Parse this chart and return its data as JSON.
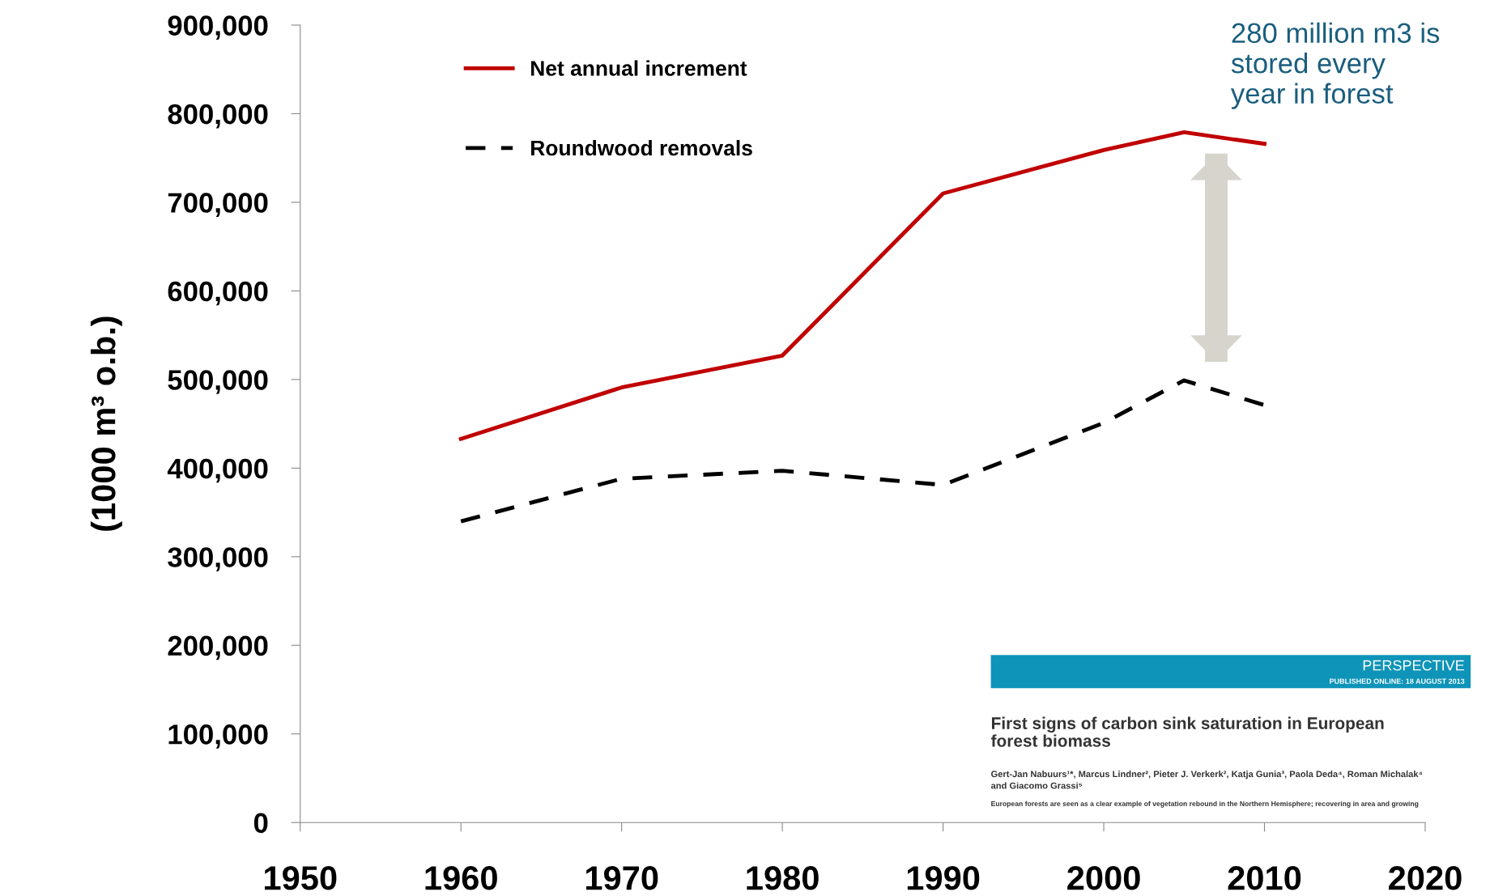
{
  "chart_data": {
    "type": "line",
    "ylabel": "(1000 m³ o.b.)",
    "x": [
      1960,
      1970,
      1980,
      1990,
      2000,
      2005,
      2010
    ],
    "series": [
      {
        "name": "Net annual increment",
        "color": "#c00000",
        "line_style": "solid",
        "values": [
          433000,
          491000,
          527000,
          710000,
          759000,
          779000,
          766000
        ]
      },
      {
        "name": "Roundwood removals",
        "color": "#000000",
        "line_style": "dashed",
        "values": [
          340000,
          388000,
          397000,
          381000,
          451000,
          499000,
          471000
        ]
      }
    ],
    "xlim": [
      1950,
      2020
    ],
    "xticks": [
      1950,
      1960,
      1970,
      1980,
      1990,
      2000,
      2010,
      2020
    ],
    "ylim": [
      0,
      900000
    ],
    "yticks": [
      0,
      {
        "value": 100000,
        "label": "100,000"
      },
      {
        "value": 200000,
        "label": "200,000"
      },
      {
        "value": 300000,
        "label": "300,000"
      },
      {
        "value": 400000,
        "label": "400,000"
      },
      {
        "value": 500000,
        "label": "500,000"
      },
      {
        "value": 600000,
        "label": "600,000"
      },
      {
        "value": 700000,
        "label": "700,000"
      },
      {
        "value": 800000,
        "label": "800,000"
      },
      {
        "value": 900000,
        "label": "900,000"
      }
    ],
    "grid": false,
    "legend": "top left",
    "marker": "none",
    "annotations": [
      "280 million m3 is\nstored every\nyear in forest",
      "PERSPECTIVE",
      "PUBLISHED ONLINE: 18 AUGUST 2013",
      "First signs of carbon sink saturation in European\nforest biomass",
      "Gert-Jan Nabuurs¹*, Marcus Lindner², Pieter J. Verkerk², Katja Gunia³, Paola Deda⁴, Roman Michalak⁴\nand Giacomo Grassi⁵",
      "European forests are seen as a clear example of vegetation rebound in the Northern Hemisphere; recovering in area and growing"
    ]
  }
}
